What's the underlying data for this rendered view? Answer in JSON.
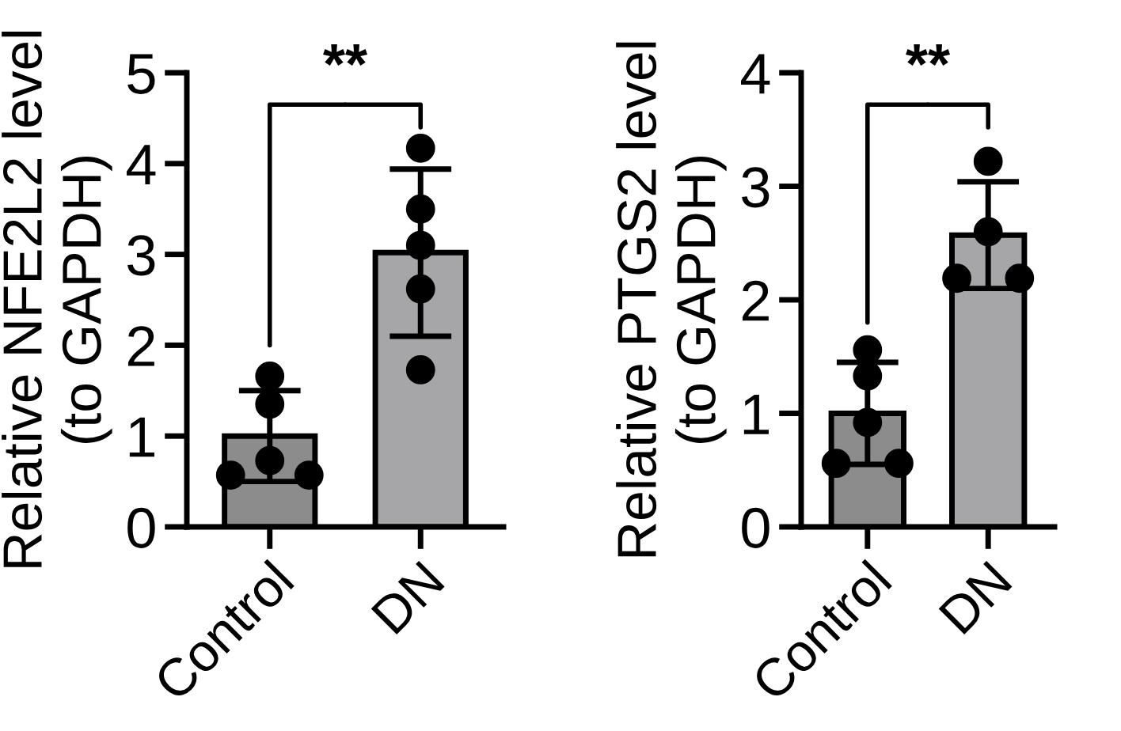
{
  "chart_data": [
    {
      "type": "bar",
      "ylabel": "Relative NFE2L2 level\n(to GAPDH)",
      "categories": [
        "Control",
        "DN"
      ],
      "values": [
        1.0,
        3.02
      ],
      "errors": [
        0.5,
        0.92
      ],
      "colors": [
        "#8c8c8c",
        "#a6a6a8"
      ],
      "ylim": [
        0,
        5
      ],
      "yticks": [
        0,
        1,
        2,
        3,
        4,
        5
      ],
      "grid": false,
      "annotations": [
        "**"
      ],
      "series": [
        {
          "type": "scatter",
          "x": [
            "Control",
            "Control",
            "Control",
            "Control",
            "Control",
            "DN",
            "DN",
            "DN",
            "DN",
            "DN"
          ],
          "values": [
            1.66,
            1.35,
            0.73,
            0.57,
            0.57,
            4.17,
            3.5,
            3.1,
            2.62,
            1.73
          ],
          "color": "#000000"
        }
      ]
    },
    {
      "type": "bar",
      "ylabel": "Relative PTGS2 level\n(to GAPDH)",
      "categories": [
        "Control",
        "DN"
      ],
      "values": [
        1.0,
        2.57
      ],
      "errors": [
        0.45,
        0.47
      ],
      "colors": [
        "#8c8c8c",
        "#a6a6a8"
      ],
      "ylim": [
        0,
        4
      ],
      "yticks": [
        0,
        1,
        2,
        3,
        4
      ],
      "grid": false,
      "annotations": [
        "**"
      ],
      "series": [
        {
          "type": "scatter",
          "x": [
            "Control",
            "Control",
            "Control",
            "Control",
            "Control",
            "DN",
            "DN",
            "DN",
            "DN"
          ],
          "values": [
            1.56,
            1.33,
            0.92,
            0.56,
            0.56,
            3.22,
            2.6,
            2.19,
            2.19
          ],
          "color": "#000000"
        }
      ]
    }
  ]
}
